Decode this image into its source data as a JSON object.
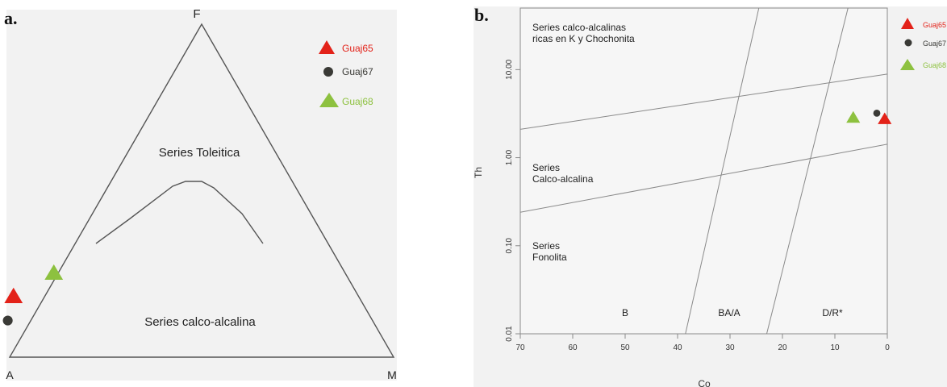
{
  "chart_data": [
    {
      "type": "scatter",
      "panel_label": "a.",
      "vertex_labels": {
        "top": "F",
        "left": "A",
        "right": "M"
      },
      "region_labels": {
        "tholeiitic": "Series Toleitica",
        "calcalkaline": "Series calco-alcalina"
      },
      "legend_placement": "top-right",
      "series": [
        {
          "name": "Guaj65",
          "marker": "triangle",
          "color": "#e32219",
          "point": {
            "A": 0.9,
            "F": 0.18,
            "M": -0.08
          }
        },
        {
          "name": "Guaj67",
          "marker": "circle",
          "color": "#3a3a36",
          "point": {
            "A": 0.95,
            "F": 0.11,
            "M": -0.06
          }
        },
        {
          "name": "Guaj68",
          "marker": "triangle",
          "color": "#8dc13f",
          "point": {
            "A": 0.76,
            "F": 0.25,
            "M": -0.01
          }
        }
      ]
    },
    {
      "type": "scatter",
      "panel_label": "b.",
      "xlabel": "Co",
      "ylabel": "Th",
      "x_scale": "linear",
      "y_scale": "log",
      "xlim": [
        70,
        0
      ],
      "ylim": [
        0.01,
        50
      ],
      "x_ticks": [
        "70",
        "60",
        "50",
        "40",
        "30",
        "20",
        "10",
        "0"
      ],
      "y_ticks": [
        "0.01",
        "0.10",
        "1.00",
        "10.00"
      ],
      "region_labels": {
        "high_k": [
          "Series calco-alcalinas",
          "ricas en K y Chochonita"
        ],
        "calcalkaline": [
          "Series",
          "Calco-alcalina"
        ],
        "phonolite": [
          "Series",
          "Fonolita"
        ],
        "b": "B",
        "ba_a": "BA/A",
        "d_r": "D/R*"
      },
      "boundary_lines": [
        [
          [
            70,
            2.1
          ],
          [
            0,
            8.9
          ]
        ],
        [
          [
            70,
            0.24
          ],
          [
            0,
            1.42
          ]
        ],
        [
          [
            38.5,
            0.01
          ],
          [
            24.5,
            50
          ]
        ],
        [
          [
            23,
            0.01
          ],
          [
            7.5,
            50
          ]
        ]
      ],
      "legend_placement": "top-right",
      "series": [
        {
          "name": "Guaj65",
          "marker": "triangle",
          "color": "#e32219",
          "point": [
            0.5,
            2.7
          ]
        },
        {
          "name": "Guaj67",
          "marker": "circle",
          "color": "#3a3a36",
          "point": [
            2,
            3.2
          ]
        },
        {
          "name": "Guaj68",
          "marker": "triangle",
          "color": "#8dc13f",
          "point": [
            6.5,
            2.8
          ]
        }
      ]
    }
  ]
}
